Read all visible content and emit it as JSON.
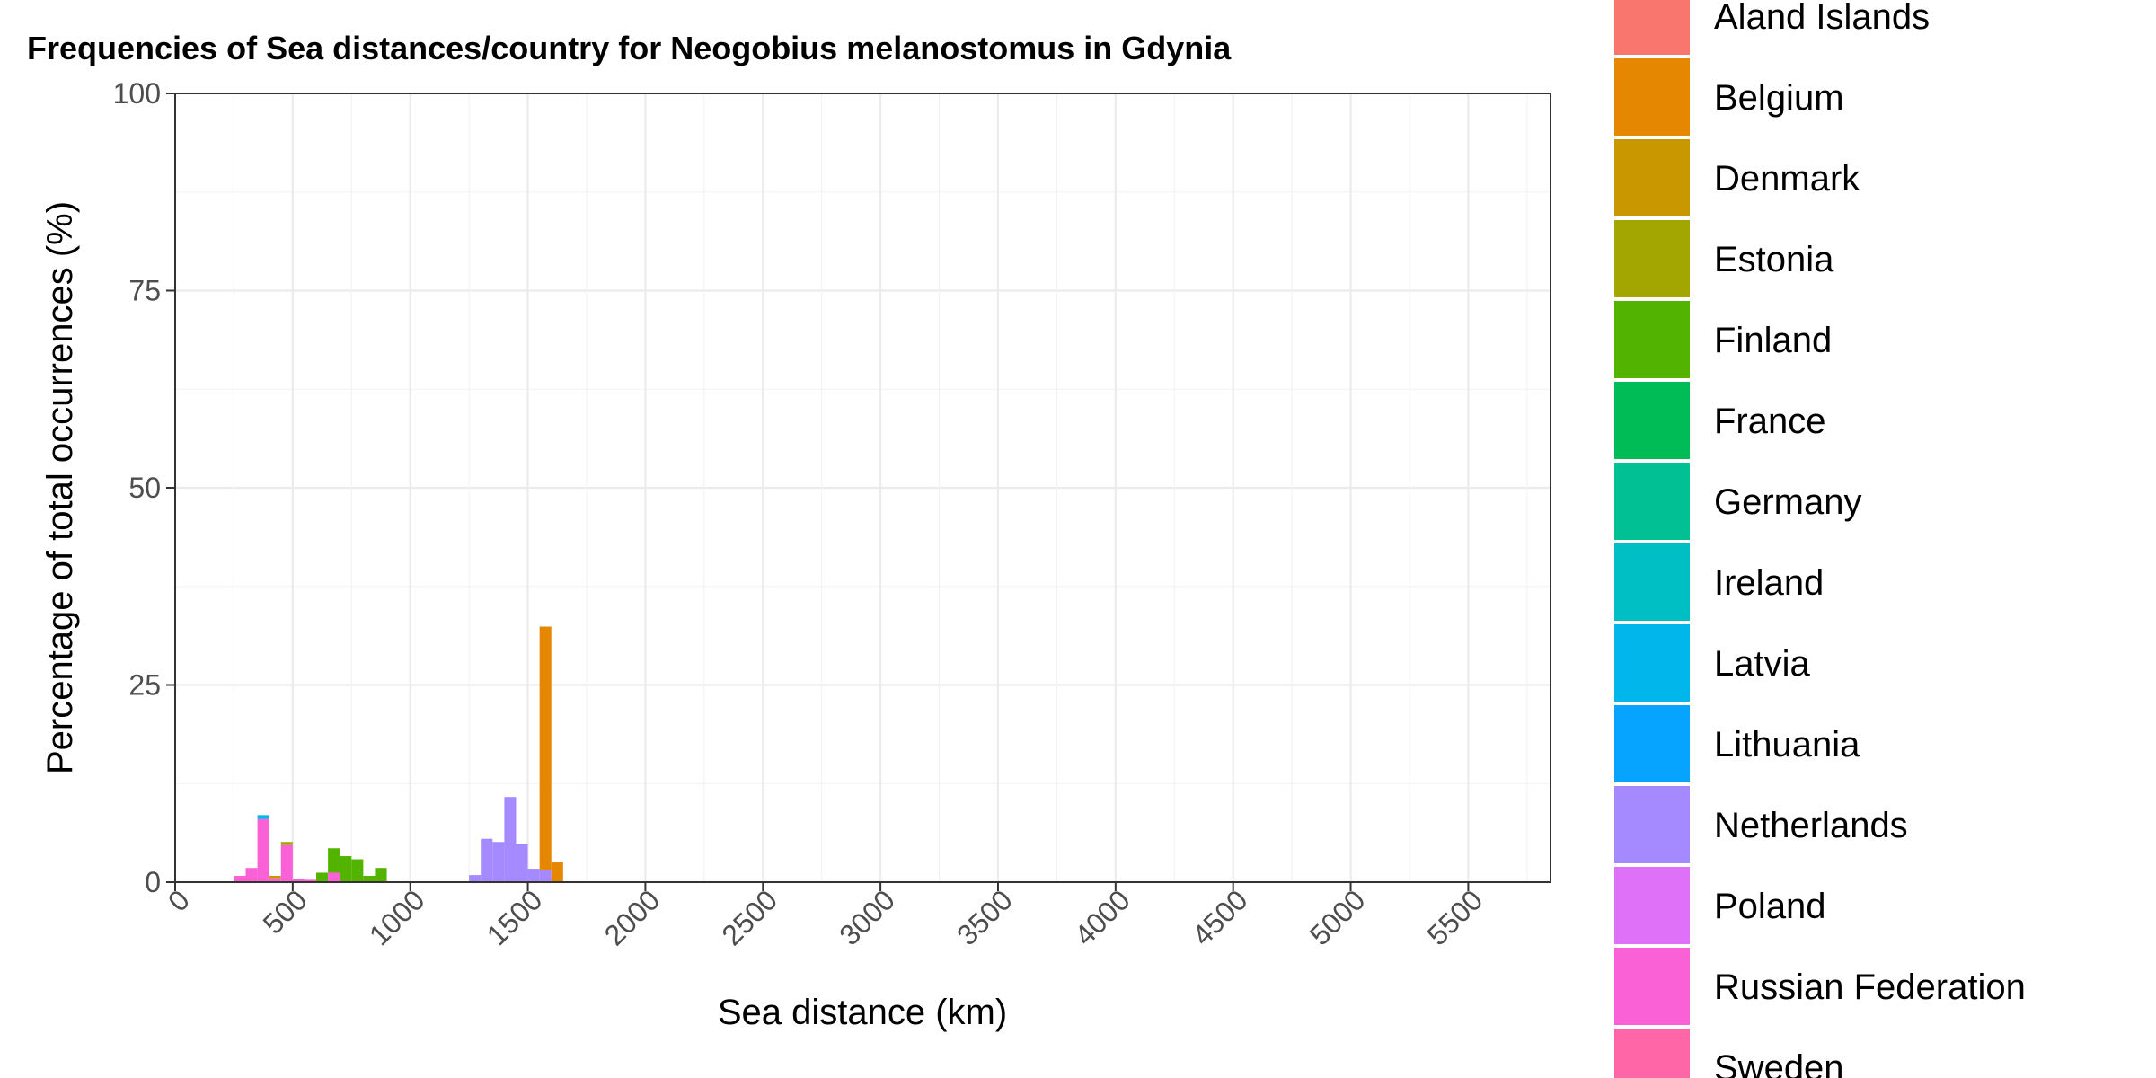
{
  "chart_data": {
    "type": "bar",
    "stacked": true,
    "title": "Frequencies of Sea distances/country for Neogobius melanostomus in Gdynia",
    "xlabel": "Sea distance (km)",
    "ylabel": "Percentage of total occurrences (%)",
    "xlim": [
      0,
      5850
    ],
    "ylim": [
      0,
      100
    ],
    "xticks": [
      0,
      500,
      1000,
      1500,
      2000,
      2500,
      3000,
      3500,
      4000,
      4500,
      5000,
      5500
    ],
    "yticks": [
      0,
      25,
      50,
      75,
      100
    ],
    "grid": true,
    "legend_position": "right",
    "bin_width": 50,
    "legend": [
      {
        "name": "Aland Islands",
        "color": "#F8766D"
      },
      {
        "name": "Belgium",
        "color": "#E58700"
      },
      {
        "name": "Denmark",
        "color": "#C99800"
      },
      {
        "name": "Estonia",
        "color": "#A3A500"
      },
      {
        "name": "Finland",
        "color": "#53B400"
      },
      {
        "name": "France",
        "color": "#00BC56"
      },
      {
        "name": "Germany",
        "color": "#00C094"
      },
      {
        "name": "Ireland",
        "color": "#00BFC4"
      },
      {
        "name": "Latvia",
        "color": "#00B6EB"
      },
      {
        "name": "Lithuania",
        "color": "#06A4FF"
      },
      {
        "name": "Netherlands",
        "color": "#A58AFF"
      },
      {
        "name": "Poland",
        "color": "#DF70F8"
      },
      {
        "name": "Russian Federation",
        "color": "#FB61D7"
      },
      {
        "name": "Sweden",
        "color": "#FF66A8"
      }
    ],
    "bars": [
      {
        "x": 275,
        "segments": [
          {
            "name": "Russian Federation",
            "value": 0.8
          }
        ]
      },
      {
        "x": 325,
        "segments": [
          {
            "name": "Russian Federation",
            "value": 1.8
          }
        ]
      },
      {
        "x": 375,
        "segments": [
          {
            "name": "Russian Federation",
            "value": 8.0
          },
          {
            "name": "Latvia",
            "value": 0.5
          }
        ]
      },
      {
        "x": 425,
        "segments": [
          {
            "name": "Russian Federation",
            "value": 0.5
          },
          {
            "name": "Denmark",
            "value": 0.3
          }
        ]
      },
      {
        "x": 475,
        "segments": [
          {
            "name": "Russian Federation",
            "value": 4.7
          },
          {
            "name": "Estonia",
            "value": 0.4
          }
        ]
      },
      {
        "x": 525,
        "segments": [
          {
            "name": "Russian Federation",
            "value": 0.4
          }
        ]
      },
      {
        "x": 575,
        "segments": [
          {
            "name": "Russian Federation",
            "value": 0.3
          }
        ]
      },
      {
        "x": 625,
        "segments": [
          {
            "name": "Finland",
            "value": 1.2
          }
        ]
      },
      {
        "x": 675,
        "segments": [
          {
            "name": "Russian Federation",
            "value": 1.2
          },
          {
            "name": "Finland",
            "value": 3.1
          }
        ]
      },
      {
        "x": 725,
        "segments": [
          {
            "name": "Finland",
            "value": 3.3
          }
        ]
      },
      {
        "x": 775,
        "segments": [
          {
            "name": "Finland",
            "value": 2.9
          }
        ]
      },
      {
        "x": 825,
        "segments": [
          {
            "name": "Finland",
            "value": 0.8
          }
        ]
      },
      {
        "x": 875,
        "segments": [
          {
            "name": "Finland",
            "value": 1.8
          }
        ]
      },
      {
        "x": 1275,
        "segments": [
          {
            "name": "Netherlands",
            "value": 0.9
          }
        ]
      },
      {
        "x": 1325,
        "segments": [
          {
            "name": "Netherlands",
            "value": 5.5
          }
        ]
      },
      {
        "x": 1375,
        "segments": [
          {
            "name": "Netherlands",
            "value": 5.1
          }
        ]
      },
      {
        "x": 1425,
        "segments": [
          {
            "name": "Netherlands",
            "value": 10.8
          }
        ]
      },
      {
        "x": 1475,
        "segments": [
          {
            "name": "Netherlands",
            "value": 4.8
          }
        ]
      },
      {
        "x": 1525,
        "segments": [
          {
            "name": "Netherlands",
            "value": 1.7
          }
        ]
      },
      {
        "x": 1575,
        "segments": [
          {
            "name": "Netherlands",
            "value": 1.6
          },
          {
            "name": "Belgium",
            "value": 30.8
          }
        ]
      },
      {
        "x": 1625,
        "segments": [
          {
            "name": "Belgium",
            "value": 2.5
          }
        ]
      }
    ]
  }
}
